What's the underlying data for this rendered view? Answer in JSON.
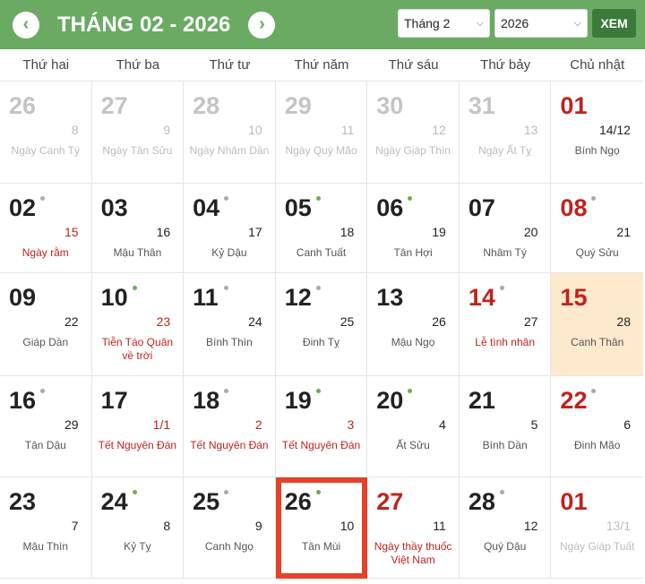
{
  "header": {
    "prev_icon": "chevron-left-icon",
    "next_icon": "chevron-right-icon",
    "title": "THÁNG 02 - 2026",
    "month_select": "Tháng 2",
    "year_select": "2026",
    "view_button": "XEM"
  },
  "colors": {
    "header_bg": "#6aaa63",
    "red": "#c0221c",
    "highlight": "#fde9cc",
    "selected_border": "#e5412b",
    "dot_green": "#6ab04c",
    "dot_gray": "#aaaaaa"
  },
  "weekdays": [
    "Thứ hai",
    "Thứ ba",
    "Thứ tư",
    "Thứ năm",
    "Thứ sáu",
    "Thứ bảy",
    "Chủ nhật"
  ],
  "days": [
    {
      "solar": "26",
      "lunar": "8",
      "label": "Ngày Canh Tý",
      "other": true
    },
    {
      "solar": "27",
      "lunar": "9",
      "label": "Ngày Tân Sửu",
      "other": true
    },
    {
      "solar": "28",
      "lunar": "10",
      "label": "Ngày Nhâm Dần",
      "other": true
    },
    {
      "solar": "29",
      "lunar": "11",
      "label": "Ngày Quý Mão",
      "other": true
    },
    {
      "solar": "30",
      "lunar": "12",
      "label": "Ngày Giáp Thìn",
      "other": true
    },
    {
      "solar": "31",
      "lunar": "13",
      "label": "Ngày Ất Tỵ",
      "other": true
    },
    {
      "solar": "01",
      "lunar": "14/12",
      "label": "Bính Ngọ",
      "solar_red": true
    },
    {
      "solar": "02",
      "lunar": "15",
      "label": "Ngày rằm",
      "dot": "gray",
      "lunar_red": true,
      "label_red": true
    },
    {
      "solar": "03",
      "lunar": "16",
      "label": "Mậu Thân"
    },
    {
      "solar": "04",
      "lunar": "17",
      "label": "Kỷ Dậu",
      "dot": "gray"
    },
    {
      "solar": "05",
      "lunar": "18",
      "label": "Canh Tuất",
      "dot": "green"
    },
    {
      "solar": "06",
      "lunar": "19",
      "label": "Tân Hợi",
      "dot": "green"
    },
    {
      "solar": "07",
      "lunar": "20",
      "label": "Nhâm Tý"
    },
    {
      "solar": "08",
      "lunar": "21",
      "label": "Quý Sửu",
      "dot": "gray",
      "solar_red": true
    },
    {
      "solar": "09",
      "lunar": "22",
      "label": "Giáp Dần"
    },
    {
      "solar": "10",
      "lunar": "23",
      "label": "Tiễn Táo Quân về trời",
      "dot": "green",
      "lunar_red": true,
      "label_red": true
    },
    {
      "solar": "11",
      "lunar": "24",
      "label": "Bính Thìn",
      "dot": "gray"
    },
    {
      "solar": "12",
      "lunar": "25",
      "label": "Đinh Tỵ",
      "dot": "gray"
    },
    {
      "solar": "13",
      "lunar": "26",
      "label": "Mậu Ngọ"
    },
    {
      "solar": "14",
      "lunar": "27",
      "label": "Lễ tình nhân",
      "dot": "gray",
      "solar_red": true,
      "label_red": true
    },
    {
      "solar": "15",
      "lunar": "28",
      "label": "Canh Thân",
      "solar_red": true,
      "highlight": true
    },
    {
      "solar": "16",
      "lunar": "29",
      "label": "Tân Dậu",
      "dot": "gray"
    },
    {
      "solar": "17",
      "lunar": "1/1",
      "label": "Tết Nguyên Đán",
      "lunar_red": true,
      "label_red": true
    },
    {
      "solar": "18",
      "lunar": "2",
      "label": "Tết Nguyên Đán",
      "dot": "gray",
      "lunar_red": true,
      "label_red": true
    },
    {
      "solar": "19",
      "lunar": "3",
      "label": "Tết Nguyên Đán",
      "dot": "green",
      "lunar_red": true,
      "label_red": true
    },
    {
      "solar": "20",
      "lunar": "4",
      "label": "Ất Sửu",
      "dot": "green"
    },
    {
      "solar": "21",
      "lunar": "5",
      "label": "Bính Dần"
    },
    {
      "solar": "22",
      "lunar": "6",
      "label": "Đinh Mão",
      "dot": "gray",
      "solar_red": true
    },
    {
      "solar": "23",
      "lunar": "7",
      "label": "Mậu Thìn"
    },
    {
      "solar": "24",
      "lunar": "8",
      "label": "Kỷ Tỵ",
      "dot": "green"
    },
    {
      "solar": "25",
      "lunar": "9",
      "label": "Canh Ngọ",
      "dot": "gray"
    },
    {
      "solar": "26",
      "lunar": "10",
      "label": "Tân Mùi",
      "dot": "green",
      "selected": true
    },
    {
      "solar": "27",
      "lunar": "11",
      "label": "Ngày thầy thuốc Việt Nam",
      "solar_red": true,
      "label_red": true
    },
    {
      "solar": "28",
      "lunar": "12",
      "label": "Quý Dậu",
      "dot": "gray"
    },
    {
      "solar": "01",
      "lunar": "13/1",
      "label": "Ngày Giáp Tuất",
      "other": true,
      "solar_red": true
    }
  ]
}
